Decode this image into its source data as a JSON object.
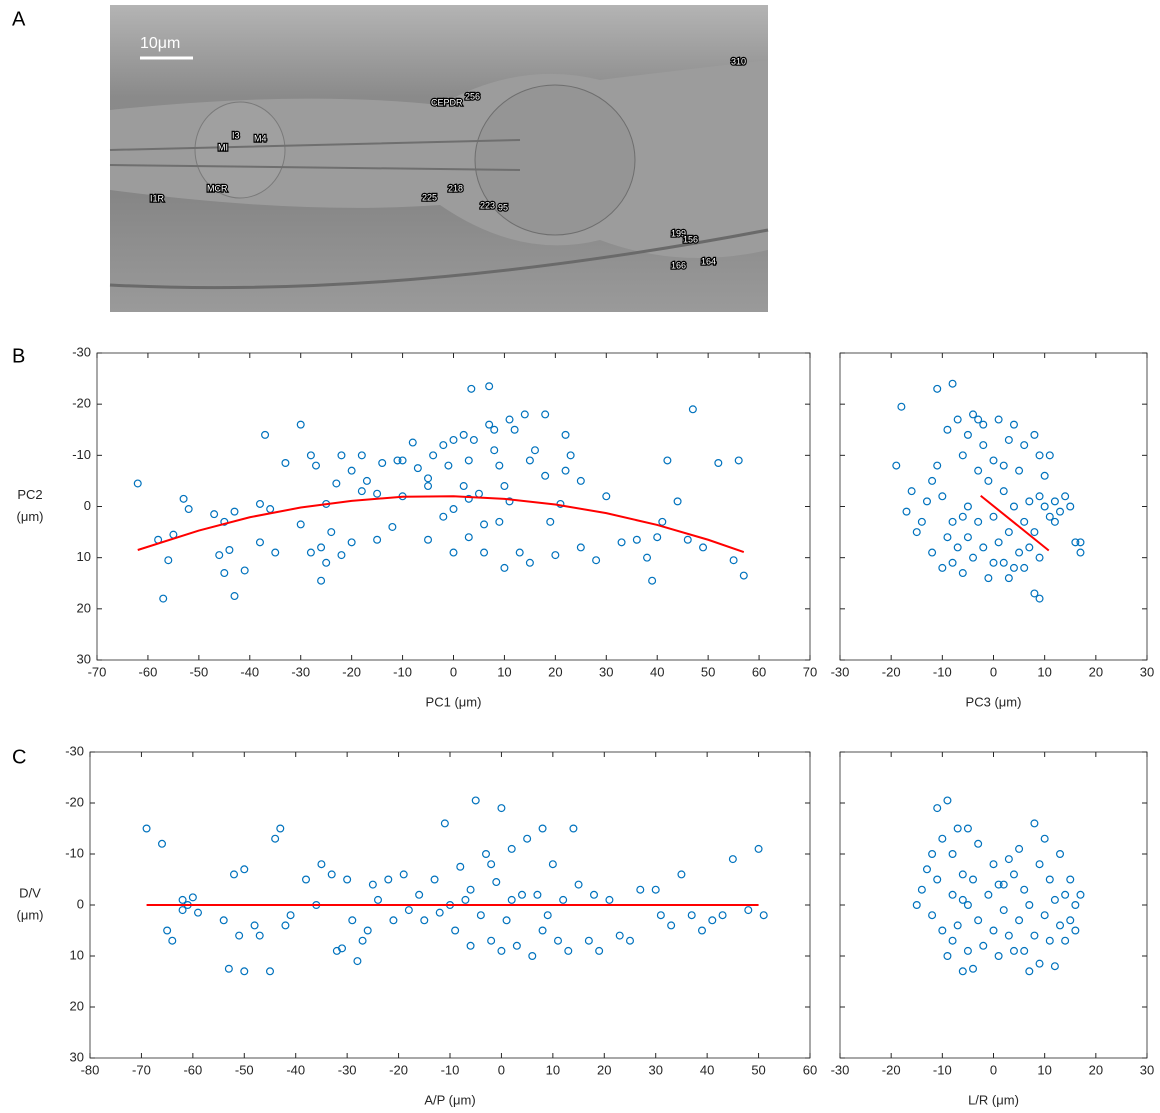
{
  "panel_labels": [
    "A",
    "B",
    "C"
  ],
  "panel_a": {
    "scale_bar": "10μm",
    "cell_labels": [
      "310",
      "CEPDR",
      "256",
      "I3",
      "M4",
      "MI",
      "MCR",
      "I1R",
      "225",
      "218",
      "223",
      "95",
      "199",
      "156",
      "166",
      "164"
    ]
  },
  "chart_data": [
    {
      "type": "scatter",
      "xlabel": "PC1 (μm)",
      "ylabel": [
        "PC2",
        "(μm)"
      ],
      "xlim": [
        -70,
        70
      ],
      "xticks": [
        -70,
        -60,
        -50,
        -40,
        -30,
        -20,
        -10,
        0,
        10,
        20,
        30,
        40,
        50,
        60,
        70
      ],
      "ylim": [
        -30,
        30
      ],
      "y_reversed": true,
      "yticks": [
        -30,
        -20,
        -10,
        0,
        10,
        20,
        30
      ],
      "ytick_labels": true,
      "series": [
        {
          "type": "scatter",
          "color": "#0072bd",
          "x": [
            -62,
            -58,
            -57,
            -56,
            -55,
            -53,
            -52,
            -47,
            -46,
            -45,
            -45,
            -44,
            -43,
            -43,
            -41,
            -38,
            -38,
            -37,
            -36,
            -35,
            -33,
            -30,
            -30,
            -28,
            -28,
            -27,
            -26,
            -26,
            -25,
            -25,
            -24,
            -23,
            -22,
            -22,
            -20,
            -20,
            -18,
            -18,
            -17,
            -15,
            -15,
            -14,
            -12,
            -10,
            -10,
            -8,
            -7,
            -5,
            -5,
            -4,
            -2,
            -2,
            -1,
            0,
            0,
            0,
            2,
            2,
            3,
            3,
            3,
            4,
            5,
            6,
            6,
            7,
            7,
            8,
            8,
            9,
            9,
            10,
            10,
            11,
            11,
            12,
            13,
            14,
            15,
            15,
            16,
            18,
            18,
            19,
            20,
            21,
            22,
            22,
            23,
            25,
            25,
            28,
            30,
            33,
            36,
            38,
            39,
            40,
            41,
            42,
            44,
            46,
            47,
            49,
            52,
            55,
            56,
            57,
            3.5,
            -11,
            -5
          ],
          "values": [
            -4.5,
            6.5,
            18,
            10.5,
            5.5,
            -1.5,
            0.5,
            1.5,
            9.5,
            3,
            13,
            8.5,
            17.5,
            1,
            12.5,
            7,
            -0.5,
            -14,
            0.5,
            9,
            -8.5,
            -16,
            3.5,
            9,
            -10,
            -8,
            14.5,
            8,
            -0.5,
            11,
            5,
            -4.5,
            9.5,
            -10,
            -7,
            7,
            -3,
            -10,
            -5,
            -2.5,
            6.5,
            -8.5,
            4,
            -2,
            -9,
            -12.5,
            -7.5,
            -4,
            6.5,
            -10,
            -12,
            2,
            -8,
            0.5,
            -13,
            9,
            -14,
            -4,
            -9,
            6,
            -1.5,
            -13,
            -2.5,
            3.5,
            9,
            -16,
            -23.5,
            -15,
            -11,
            3,
            -8,
            -4,
            12,
            -1,
            -17,
            -15,
            9,
            -18,
            -9,
            11,
            -11,
            -18,
            -6,
            3,
            9.5,
            -0.5,
            -14,
            -7,
            -10,
            -5,
            8,
            10.5,
            -2,
            7,
            6.5,
            10,
            14.5,
            6,
            3,
            -9,
            -1,
            6.5,
            -19,
            8,
            -8.5,
            10.5,
            -9,
            13.5,
            -23,
            -9,
            -5.5
          ]
        },
        {
          "type": "line",
          "color": "#ff0000",
          "x": [
            -62,
            -50,
            -40,
            -30,
            -20,
            -10,
            0,
            10,
            20,
            30,
            40,
            50,
            57
          ],
          "values": [
            8.5,
            4.7,
            2.1,
            0.2,
            -1.1,
            -1.9,
            -2,
            -1.5,
            -0.4,
            1.3,
            3.6,
            6.5,
            8.9
          ]
        }
      ]
    },
    {
      "type": "scatter",
      "xlabel": "PC3 (μm)",
      "xlim": [
        -30,
        30
      ],
      "xticks": [
        -30,
        -20,
        -10,
        0,
        10,
        20,
        30
      ],
      "ylim": [
        -30,
        30
      ],
      "y_reversed": true,
      "yticks": [
        -30,
        -20,
        -10,
        0,
        10,
        20,
        30
      ],
      "ytick_labels": false,
      "series": [
        {
          "type": "scatter",
          "color": "#0072bd",
          "x": [
            -19,
            -18,
            -17,
            -16,
            -15,
            -14,
            -13,
            -12,
            -12,
            -11,
            -11,
            -10,
            -10,
            -9,
            -9,
            -8,
            -8,
            -8,
            -7,
            -7,
            -6,
            -6,
            -5,
            -5,
            -5,
            -4,
            -4,
            -3,
            -3,
            -3,
            -2,
            -2,
            -1,
            -1,
            0,
            0,
            1,
            1,
            2,
            2,
            3,
            3,
            3,
            4,
            4,
            5,
            5,
            6,
            6,
            6,
            7,
            7,
            8,
            8,
            8,
            9,
            9,
            9,
            9,
            10,
            10,
            11,
            11,
            12,
            13,
            14,
            15,
            16,
            17,
            17,
            -2,
            2,
            -6,
            0,
            4,
            12
          ],
          "values": [
            -8,
            -19.5,
            1,
            -3,
            5,
            3,
            -1,
            9,
            -5,
            -8,
            -23,
            -2,
            12,
            6,
            -15,
            3,
            11,
            -24,
            -17,
            8,
            -10,
            13,
            -14,
            0,
            6,
            -18,
            10,
            -7,
            3,
            -17,
            -12,
            8,
            -5,
            14,
            -9,
            2,
            -17,
            7,
            -3,
            11,
            -13,
            5,
            14,
            -16,
            0,
            -7,
            9,
            -12,
            3,
            12,
            -1,
            8,
            -14,
            5,
            17,
            -2,
            -10,
            10,
            18,
            0,
            -6,
            2,
            -10,
            -1,
            1,
            -2,
            0,
            7,
            7,
            9,
            -16,
            -8,
            2,
            11,
            12,
            3
          ]
        },
        {
          "type": "line",
          "color": "#ff0000",
          "x": [
            -2.5,
            10.8
          ],
          "values": [
            -2.1,
            8.6
          ]
        }
      ]
    },
    {
      "type": "scatter",
      "xlabel": "A/P (μm)",
      "ylabel": [
        "D/V",
        "(μm)"
      ],
      "xlim": [
        -80,
        60
      ],
      "xticks": [
        -80,
        -70,
        -60,
        -50,
        -40,
        -30,
        -20,
        -10,
        0,
        10,
        20,
        30,
        40,
        50,
        60
      ],
      "ylim": [
        -30,
        30
      ],
      "y_reversed": true,
      "yticks": [
        -30,
        -20,
        -10,
        0,
        10,
        20,
        30
      ],
      "ytick_labels": true,
      "series": [
        {
          "type": "scatter",
          "color": "#0072bd",
          "x": [
            -69,
            -66,
            -65,
            -64,
            -62,
            -62,
            -61,
            -60,
            -59,
            -54,
            -53,
            -52,
            -51,
            -50,
            -50,
            -48,
            -47,
            -45,
            -44,
            -43,
            -42,
            -41,
            -38,
            -36,
            -35,
            -33,
            -32,
            -31,
            -30,
            -29,
            -28,
            -27,
            -26,
            -25,
            -24,
            -22,
            -21,
            -19,
            -18,
            -16,
            -15,
            -13,
            -12,
            -11,
            -10,
            -9,
            -8,
            -7,
            -6,
            -6,
            -5,
            -4,
            -3,
            -2,
            -1,
            0,
            0,
            1,
            2,
            2,
            3,
            4,
            5,
            6,
            7,
            8,
            9,
            10,
            11,
            12,
            13,
            14,
            15,
            17,
            18,
            19,
            21,
            23,
            25,
            27,
            30,
            31,
            33,
            35,
            37,
            39,
            41,
            43,
            45,
            48,
            50,
            51,
            -2,
            8
          ],
          "values": [
            -15,
            -12,
            5,
            7,
            1,
            -1,
            0,
            -1.5,
            1.5,
            3,
            12.5,
            -6,
            6,
            13,
            -7,
            4,
            6,
            13,
            -13,
            -15,
            4,
            2,
            -5,
            0,
            -8,
            -6,
            9,
            8.5,
            -5,
            3,
            11,
            7,
            5,
            -4,
            -1,
            -5,
            3,
            -6,
            1,
            -2,
            3,
            -5,
            1.5,
            -16,
            0,
            5,
            -7.5,
            -1,
            8,
            -3,
            -20.5,
            2,
            -10,
            7,
            -4.5,
            -19,
            9,
            3,
            -11,
            -1,
            8,
            -2,
            -13,
            10,
            -2,
            -15,
            2,
            -8,
            7,
            -1,
            9,
            -15,
            -4,
            7,
            -2,
            9,
            -1,
            6,
            7,
            -3,
            -3,
            2,
            4,
            -6,
            2,
            5,
            3,
            2,
            -9,
            1,
            -11,
            2,
            -8,
            5
          ]
        },
        {
          "type": "line",
          "color": "#ff0000",
          "x": [
            -69,
            50
          ],
          "values": [
            0,
            0
          ]
        }
      ]
    },
    {
      "type": "scatter",
      "xlabel": "L/R (μm)",
      "xlim": [
        -30,
        30
      ],
      "xticks": [
        -30,
        -20,
        -10,
        0,
        10,
        20,
        30
      ],
      "ylim": [
        -30,
        30
      ],
      "y_reversed": true,
      "yticks": [
        -30,
        -20,
        -10,
        0,
        10,
        20,
        30
      ],
      "ytick_labels": false,
      "series": [
        {
          "type": "scatter",
          "color": "#0072bd",
          "x": [
            -15,
            -14,
            -13,
            -12,
            -12,
            -11,
            -11,
            -10,
            -10,
            -9,
            -9,
            -8,
            -8,
            -8,
            -7,
            -7,
            -6,
            -6,
            -5,
            -5,
            -5,
            -4,
            -4,
            -3,
            -3,
            -2,
            -1,
            0,
            0,
            1,
            2,
            2,
            3,
            3,
            4,
            5,
            5,
            6,
            6,
            7,
            7,
            8,
            8,
            9,
            9,
            10,
            10,
            11,
            11,
            12,
            12,
            13,
            13,
            14,
            14,
            15,
            15,
            16,
            16,
            17,
            -6,
            1,
            4
          ],
          "values": [
            0,
            -3,
            -7,
            2,
            -10,
            -19,
            -5,
            5,
            -13,
            -20.5,
            10,
            -2,
            7,
            -10,
            -15,
            4,
            13,
            -6,
            -15,
            9,
            0,
            12.5,
            -5,
            3,
            -12,
            8,
            -2,
            -8,
            5,
            10,
            -4,
            1,
            6,
            -9,
            -6,
            3,
            -11,
            9,
            -3,
            13,
            0,
            -16,
            6,
            -8,
            11.5,
            2,
            -13,
            7,
            -5,
            -1,
            12,
            4,
            -10,
            -2,
            7,
            -5,
            3,
            0,
            5,
            -2,
            -1,
            -4,
            9
          ]
        }
      ]
    }
  ]
}
